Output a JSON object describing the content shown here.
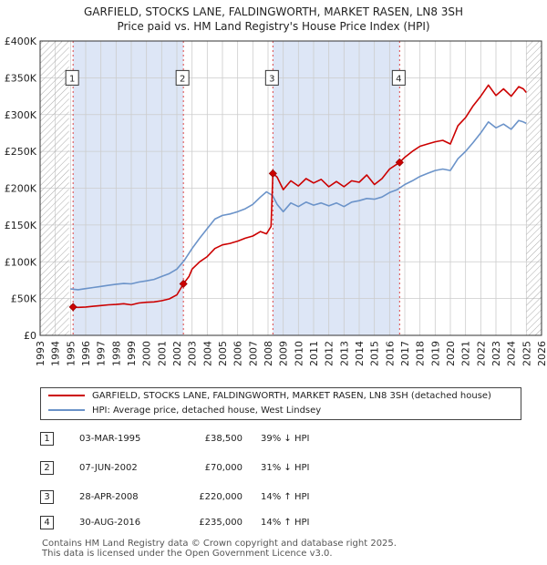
{
  "title_line1": "GARFIELD, STOCKS LANE, FALDINGWORTH, MARKET RASEN, LN8 3SH",
  "title_line2": "Price paid vs. HM Land Registry's House Price Index (HPI)",
  "colors": {
    "price_paid": "#cc0000",
    "hpi": "#6b93c9",
    "shade": "#dde6f6",
    "grid": "#cccccc",
    "vline": "#dd4444",
    "hatch": "#999999"
  },
  "legend": {
    "price_paid_label": "GARFIELD, STOCKS LANE, FALDINGWORTH, MARKET RASEN, LN8 3SH (detached house)",
    "hpi_label": "HPI: Average price, detached house, West Lindsey"
  },
  "sales": [
    {
      "num": "1",
      "date": "03-MAR-1995",
      "price": "£38,500",
      "hpi": "39% ↓ HPI"
    },
    {
      "num": "2",
      "date": "07-JUN-2002",
      "price": "£70,000",
      "hpi": "31% ↓ HPI"
    },
    {
      "num": "3",
      "date": "28-APR-2008",
      "price": "£220,000",
      "hpi": "14% ↑ HPI"
    },
    {
      "num": "4",
      "date": "30-AUG-2016",
      "price": "£235,000",
      "hpi": "14% ↑ HPI"
    }
  ],
  "footer_line1": "Contains HM Land Registry data © Crown copyright and database right 2025.",
  "footer_line2": "This data is licensed under the Open Government Licence v3.0.",
  "chart_data": {
    "type": "line",
    "title": "Price paid vs. HM Land Registry's House Price Index (HPI)",
    "xlabel": "",
    "ylabel": "",
    "xlim": [
      1993,
      2026
    ],
    "ylim": [
      0,
      400000
    ],
    "x_ticks": [
      1993,
      1994,
      1995,
      1996,
      1997,
      1998,
      1999,
      2000,
      2001,
      2002,
      2003,
      2004,
      2005,
      2006,
      2007,
      2008,
      2009,
      2010,
      2011,
      2012,
      2013,
      2014,
      2015,
      2016,
      2017,
      2018,
      2019,
      2020,
      2021,
      2022,
      2023,
      2024,
      2025,
      2026
    ],
    "y_ticks": [
      {
        "value": 0,
        "label": "£0"
      },
      {
        "value": 50000,
        "label": "£50K"
      },
      {
        "value": 100000,
        "label": "£100K"
      },
      {
        "value": 150000,
        "label": "£150K"
      },
      {
        "value": 200000,
        "label": "£200K"
      },
      {
        "value": 250000,
        "label": "£250K"
      },
      {
        "value": 300000,
        "label": "£300K"
      },
      {
        "value": 350000,
        "label": "£350K"
      },
      {
        "value": 400000,
        "label": "£400K"
      }
    ],
    "grid": true,
    "shaded_periods": [
      [
        1995.17,
        2002.43
      ],
      [
        2008.32,
        2016.66
      ]
    ],
    "hatched_periods": [
      [
        1993,
        1994.9
      ],
      [
        2025.0,
        2026
      ]
    ],
    "sale_markers": [
      {
        "label": "1",
        "x": 1995.17,
        "y": 38500
      },
      {
        "label": "2",
        "x": 2002.43,
        "y": 70000
      },
      {
        "label": "3",
        "x": 2008.32,
        "y": 220000
      },
      {
        "label": "4",
        "x": 2016.66,
        "y": 235000
      }
    ],
    "marker_label_y": 350000,
    "series": [
      {
        "name": "GARFIELD, STOCKS LANE, FALDINGWORTH, MARKET RASEN, LN8 3SH (detached house)",
        "x": [
          1995.17,
          1995.5,
          1996,
          1996.5,
          1997,
          1997.5,
          1998,
          1998.5,
          1999,
          1999.5,
          2000,
          2000.5,
          2001,
          2001.5,
          2002,
          2002.43,
          2002.8,
          2003,
          2003.5,
          2004,
          2004.5,
          2005,
          2005.5,
          2006,
          2006.5,
          2007,
          2007.5,
          2007.9,
          2008.2,
          2008.32,
          2008.6,
          2009,
          2009.5,
          2010,
          2010.5,
          2011,
          2011.5,
          2012,
          2012.5,
          2013,
          2013.5,
          2014,
          2014.5,
          2015,
          2015.5,
          2016,
          2016.66,
          2017,
          2017.5,
          2018,
          2018.5,
          2019,
          2019.5,
          2020,
          2020.5,
          2021,
          2021.5,
          2022,
          2022.5,
          2023,
          2023.5,
          2024,
          2024.5,
          2024.8,
          2025.0
        ],
        "y": [
          38500,
          38000,
          38500,
          39500,
          40500,
          41500,
          42000,
          43000,
          41500,
          44000,
          45000,
          45500,
          47000,
          49500,
          55000,
          70000,
          80000,
          90000,
          100000,
          107000,
          118000,
          123000,
          125000,
          128000,
          132000,
          135000,
          141000,
          138000,
          148000,
          220000,
          215000,
          198000,
          210000,
          203000,
          213000,
          207000,
          212000,
          202000,
          209000,
          202000,
          210000,
          208000,
          218000,
          205000,
          213000,
          226000,
          235000,
          242000,
          250000,
          257000,
          260000,
          263000,
          265000,
          260000,
          285000,
          296000,
          312000,
          325000,
          340000,
          326000,
          335000,
          325000,
          338000,
          335000,
          330000
        ]
      },
      {
        "name": "HPI: Average price, detached house, West Lindsey",
        "x": [
          1995.0,
          1995.5,
          1996,
          1996.5,
          1997,
          1997.5,
          1998,
          1998.5,
          1999,
          1999.5,
          2000,
          2000.5,
          2001,
          2001.5,
          2002,
          2002.5,
          2003,
          2003.5,
          2004,
          2004.5,
          2005,
          2005.5,
          2006,
          2006.5,
          2007,
          2007.5,
          2007.9,
          2008.3,
          2008.6,
          2009,
          2009.5,
          2010,
          2010.5,
          2011,
          2011.5,
          2012,
          2012.5,
          2013,
          2013.5,
          2014,
          2014.5,
          2015,
          2015.5,
          2016,
          2016.5,
          2017,
          2017.5,
          2018,
          2018.5,
          2019,
          2019.5,
          2020,
          2020.5,
          2021,
          2021.5,
          2022,
          2022.5,
          2023,
          2023.5,
          2024,
          2024.5,
          2024.8,
          2025.0
        ],
        "y": [
          63000,
          62000,
          63500,
          65000,
          66500,
          68000,
          69500,
          70500,
          70000,
          72500,
          74000,
          76000,
          80000,
          84000,
          90000,
          102000,
          118000,
          132000,
          145000,
          158000,
          163000,
          165000,
          168000,
          172000,
          178000,
          188000,
          195000,
          190000,
          178000,
          168000,
          180000,
          175000,
          181000,
          177000,
          180000,
          176000,
          180000,
          175000,
          181000,
          183000,
          186000,
          185000,
          188000,
          194000,
          198000,
          205000,
          210000,
          216000,
          220000,
          224000,
          226000,
          224000,
          240000,
          250000,
          262000,
          275000,
          290000,
          282000,
          287000,
          280000,
          292000,
          290000,
          288000
        ]
      }
    ]
  }
}
